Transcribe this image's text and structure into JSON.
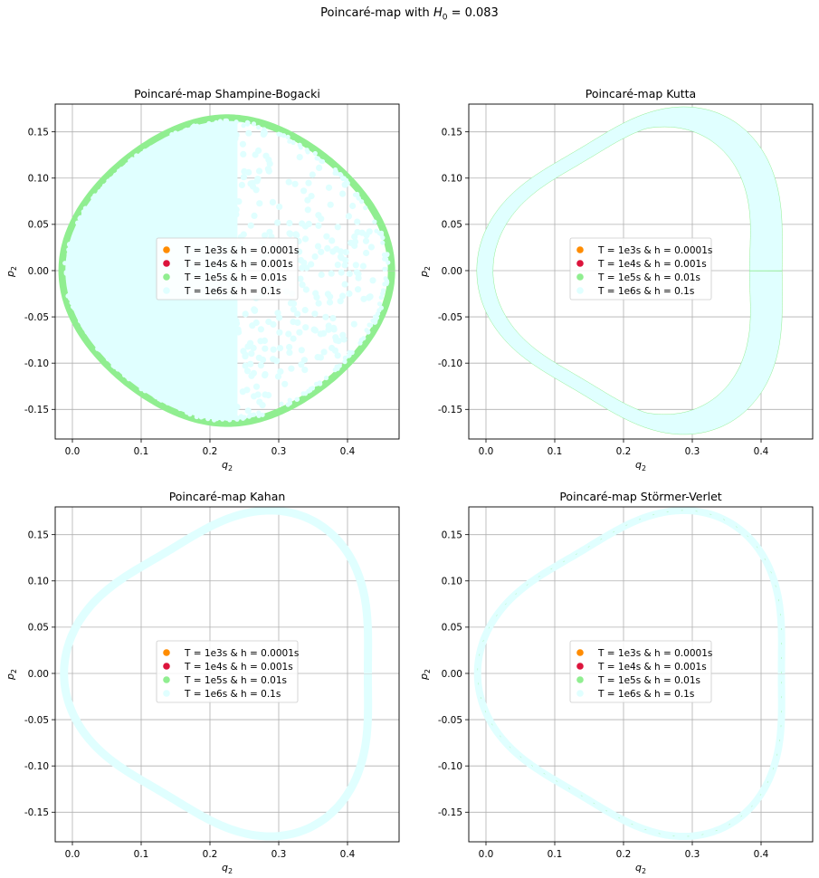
{
  "figure": {
    "suptitle_prefix": "Poincaré-map with ",
    "suptitle_symbol": "H",
    "suptitle_subscript": "0",
    "suptitle_suffix": " = 0.083"
  },
  "colors": {
    "series": [
      "#ff8c00",
      "#dc143c",
      "#90ee90",
      "#e0ffff"
    ],
    "grid": "#b0b0b0",
    "axes": "#000000"
  },
  "chart_data": [
    {
      "type": "scatter",
      "title": "Poincaré-map Shampine-Bogacki",
      "xlabel": "q",
      "xlabel_sub": "2",
      "ylabel": "p",
      "ylabel_sub": "2",
      "xlim": [
        -0.025,
        0.475
      ],
      "ylim": [
        -0.182,
        0.18
      ],
      "xticks": [
        "0.0",
        "0.1",
        "0.2",
        "0.3",
        "0.4"
      ],
      "xtick_values": [
        0,
        0.1,
        0.2,
        0.3,
        0.4
      ],
      "yticks": [
        "0.15",
        "0.10",
        "0.05",
        "0.00",
        "-0.05",
        "-0.10",
        "-0.15"
      ],
      "ytick_values": [
        0.15,
        0.1,
        0.05,
        0,
        -0.05,
        -0.1,
        -0.15
      ],
      "grid": true,
      "legend_position": "center",
      "series": [
        {
          "name": "T = 1e3s & h = 0.0001s",
          "color": "#ff8c00"
        },
        {
          "name": "T = 1e4s & h = 0.001s",
          "color": "#dc143c"
        },
        {
          "name": "T = 1e5s & h = 0.01s",
          "color": "#90ee90"
        },
        {
          "name": "T = 1e6s & h = 0.1s",
          "color": "#e0ffff"
        }
      ]
    },
    {
      "type": "scatter",
      "title": "Poincaré-map Kutta",
      "xlabel": "q",
      "xlabel_sub": "2",
      "ylabel": "p",
      "ylabel_sub": "2",
      "xlim": [
        -0.025,
        0.475
      ],
      "ylim": [
        -0.182,
        0.18
      ],
      "xticks": [
        "0.0",
        "0.1",
        "0.2",
        "0.3",
        "0.4"
      ],
      "xtick_values": [
        0,
        0.1,
        0.2,
        0.3,
        0.4
      ],
      "yticks": [
        "0.15",
        "0.10",
        "0.05",
        "0.00",
        "-0.05",
        "-0.10",
        "-0.15"
      ],
      "ytick_values": [
        0.15,
        0.1,
        0.05,
        0,
        -0.05,
        -0.1,
        -0.15
      ],
      "grid": true,
      "legend_position": "center",
      "series": [
        {
          "name": "T = 1e3s & h = 0.0001s",
          "color": "#ff8c00"
        },
        {
          "name": "T = 1e4s & h = 0.001s",
          "color": "#dc143c"
        },
        {
          "name": "T = 1e5s & h = 0.01s",
          "color": "#90ee90"
        },
        {
          "name": "T = 1e6s & h = 0.1s",
          "color": "#e0ffff"
        }
      ]
    },
    {
      "type": "scatter",
      "title": "Poincaré-map Kahan",
      "xlabel": "q",
      "xlabel_sub": "2",
      "ylabel": "p",
      "ylabel_sub": "2",
      "xlim": [
        -0.025,
        0.475
      ],
      "ylim": [
        -0.182,
        0.18
      ],
      "xticks": [
        "0.0",
        "0.1",
        "0.2",
        "0.3",
        "0.4"
      ],
      "xtick_values": [
        0,
        0.1,
        0.2,
        0.3,
        0.4
      ],
      "yticks": [
        "0.15",
        "0.10",
        "0.05",
        "0.00",
        "-0.05",
        "-0.10",
        "-0.15"
      ],
      "ytick_values": [
        0.15,
        0.1,
        0.05,
        0,
        -0.05,
        -0.1,
        -0.15
      ],
      "grid": true,
      "legend_position": "center",
      "series": [
        {
          "name": "T = 1e3s & h = 0.0001s",
          "color": "#ff8c00"
        },
        {
          "name": "T = 1e4s & h = 0.001s",
          "color": "#dc143c"
        },
        {
          "name": "T = 1e5s & h = 0.01s",
          "color": "#90ee90"
        },
        {
          "name": "T = 1e6s & h = 0.1s",
          "color": "#e0ffff"
        }
      ]
    },
    {
      "type": "scatter",
      "title": "Poincaré-map Störmer-Verlet",
      "xlabel": "q",
      "xlabel_sub": "2",
      "ylabel": "p",
      "ylabel_sub": "2",
      "xlim": [
        -0.025,
        0.475
      ],
      "ylim": [
        -0.182,
        0.18
      ],
      "xticks": [
        "0.0",
        "0.1",
        "0.2",
        "0.3",
        "0.4"
      ],
      "xtick_values": [
        0,
        0.1,
        0.2,
        0.3,
        0.4
      ],
      "yticks": [
        "0.15",
        "0.10",
        "0.05",
        "0.00",
        "-0.05",
        "-0.10",
        "-0.15"
      ],
      "ytick_values": [
        0.15,
        0.1,
        0.05,
        0,
        -0.05,
        -0.1,
        -0.15
      ],
      "grid": true,
      "legend_position": "center",
      "series": [
        {
          "name": "T = 1e3s & h = 0.0001s",
          "color": "#ff8c00"
        },
        {
          "name": "T = 1e4s & h = 0.001s",
          "color": "#dc143c"
        },
        {
          "name": "T = 1e5s & h = 0.01s",
          "color": "#90ee90"
        },
        {
          "name": "T = 1e6s & h = 0.1s",
          "color": "#e0ffff"
        }
      ]
    }
  ]
}
